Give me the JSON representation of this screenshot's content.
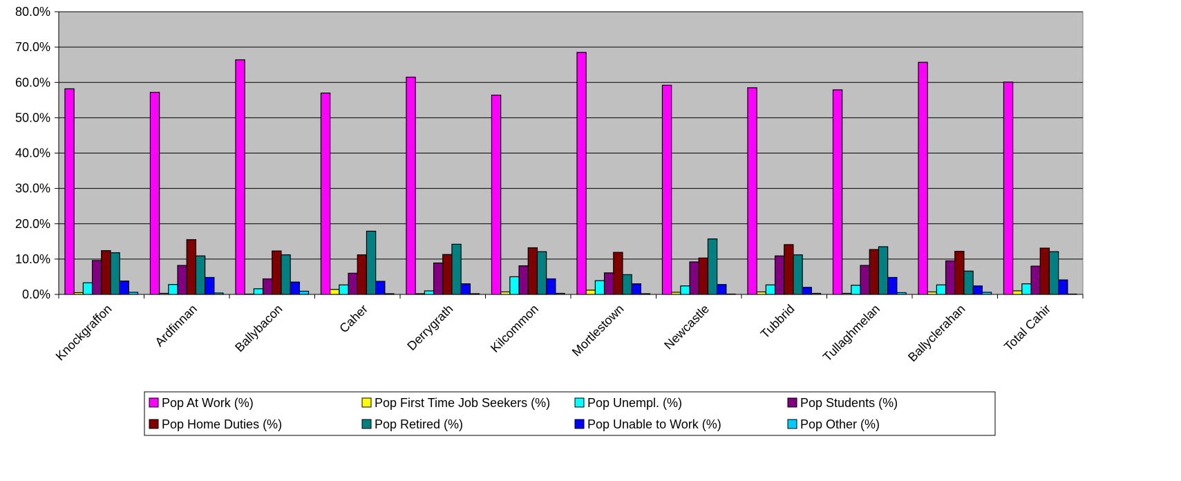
{
  "chart_data": {
    "type": "bar",
    "categories": [
      "Knockgraffon",
      "Ardfinnan",
      "Ballybacon",
      "Caher",
      "Derrygrath",
      "Kilcommon",
      "Mortlestown",
      "Newcastle",
      "Tubbrid",
      "Tullaghmelan",
      "Ballyclerahan",
      "Total Cahir"
    ],
    "series": [
      {
        "name": "Pop At Work (%)",
        "color": "#FF00FF",
        "values": [
          58.2,
          57.2,
          66.4,
          57.0,
          61.5,
          56.4,
          68.5,
          59.2,
          58.5,
          57.9,
          65.7,
          60.1
        ]
      },
      {
        "name": "Pop First Time Job Seekers (%)",
        "color": "#FFFF00",
        "values": [
          0.5,
          0.3,
          0.1,
          1.4,
          0.2,
          0.7,
          1.2,
          0.6,
          0.7,
          0.3,
          0.7,
          1.0
        ]
      },
      {
        "name": "Pop Unempl. (%)",
        "color": "#00FFFF",
        "values": [
          3.3,
          2.8,
          1.6,
          2.7,
          1.0,
          5.0,
          3.9,
          2.4,
          2.7,
          2.6,
          2.7,
          3.0
        ]
      },
      {
        "name": "Pop Students (%)",
        "color": "#800080",
        "values": [
          9.6,
          8.2,
          4.4,
          6.0,
          8.9,
          8.1,
          6.1,
          9.2,
          10.9,
          8.2,
          9.5,
          8.0
        ]
      },
      {
        "name": "Pop Home Duties (%)",
        "color": "#800000",
        "values": [
          12.4,
          15.5,
          12.3,
          11.2,
          11.3,
          13.2,
          11.9,
          10.3,
          14.1,
          12.7,
          12.2,
          13.1
        ]
      },
      {
        "name": "Pop Retired (%)",
        "color": "#008080",
        "values": [
          11.8,
          10.9,
          11.2,
          17.9,
          14.2,
          12.1,
          5.6,
          15.7,
          11.2,
          13.5,
          6.6,
          12.1
        ]
      },
      {
        "name": "Pop Unable to Work (%)",
        "color": "#0000FF",
        "values": [
          3.8,
          4.8,
          3.5,
          3.7,
          3.0,
          4.4,
          3.0,
          2.8,
          2.0,
          4.8,
          2.4,
          4.1
        ]
      },
      {
        "name": "Pop Other (%)",
        "color": "#00CCFF",
        "values": [
          0.6,
          0.4,
          0.9,
          0.2,
          0.2,
          0.3,
          0.2,
          0.1,
          0.3,
          0.5,
          0.6,
          0.1
        ]
      }
    ],
    "ylim": [
      0,
      80
    ],
    "yticks": [
      "0.0%",
      "10.0%",
      "20.0%",
      "30.0%",
      "40.0%",
      "50.0%",
      "60.0%",
      "70.0%",
      "80.0%"
    ],
    "grid": true,
    "plot_background": "#C0C0C0",
    "legend_placement": "bottom"
  }
}
